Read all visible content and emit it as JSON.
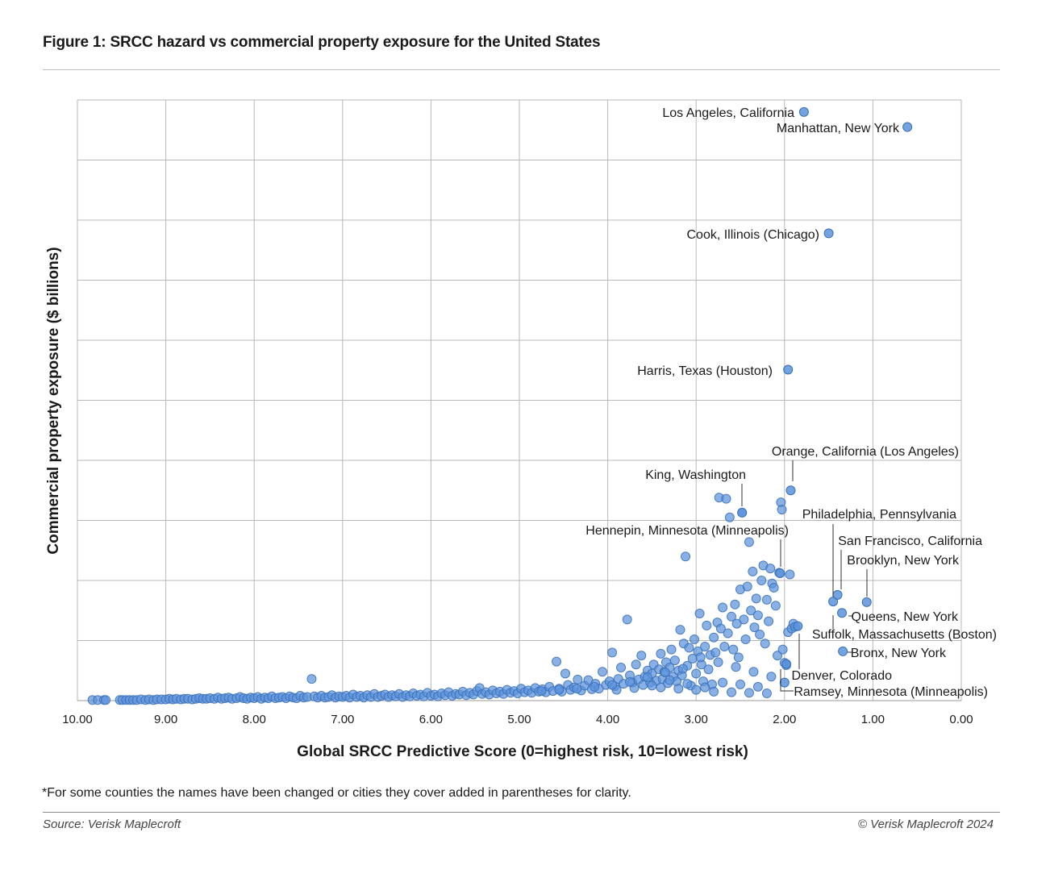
{
  "title": "Figure 1: SRCC hazard vs commercial property exposure for the United States",
  "footnote": "*For some counties the names have been changed or cities they cover added in parentheses for clarity.",
  "source": "Source: Verisk Maplecroft",
  "copyright": "© Verisk Maplecroft 2024",
  "colors": {
    "marker_fill": "#5b93dc",
    "marker_stroke": "#3a6fb5",
    "grid": "#b8b8b8",
    "text": "#1a1a1a"
  },
  "chart_data": {
    "type": "scatter",
    "title": "Figure 1: SRCC hazard vs commercial property exposure for the United States",
    "xlabel": "Global SRCC Predictive Score (0=highest risk, 10=lowest risk)",
    "ylabel": "Commercial property exposure ($ billions)",
    "xlim": [
      10,
      0
    ],
    "x_reversed": true,
    "ylim": [
      0,
      100
    ],
    "y_tick_labels_shown": false,
    "grid": true,
    "x_ticks": [
      "10.00",
      "9.00",
      "8.00",
      "7.00",
      "6.00",
      "5.00",
      "4.00",
      "3.00",
      "2.00",
      "1.00",
      "0.00"
    ],
    "labeled_points": [
      {
        "label": "Los Angeles, California",
        "x": 1.78,
        "y": 98.0
      },
      {
        "label": "Manhattan, New York",
        "x": 0.61,
        "y": 95.5
      },
      {
        "label": "Cook, Illinois (Chicago)",
        "x": 1.5,
        "y": 77.8
      },
      {
        "label": "Harris, Texas (Houston)",
        "x": 1.96,
        "y": 55.1
      },
      {
        "label": "Orange, California (Los Angeles)",
        "x": 1.93,
        "y": 35.0
      },
      {
        "label": "King, Washington",
        "x": 2.48,
        "y": 31.3
      },
      {
        "label": "Hennepin, Minnesota (Minneapolis)",
        "x": 2.05,
        "y": 21.2
      },
      {
        "label": "Philadelphia, Pennsylvania",
        "x": 1.45,
        "y": 16.5
      },
      {
        "label": "San Francisco, California",
        "x": 1.4,
        "y": 17.6
      },
      {
        "label": "Brooklyn, New York",
        "x": 1.07,
        "y": 16.4
      },
      {
        "label": "Queens, New York",
        "x": 1.35,
        "y": 14.6
      },
      {
        "label": "Suffolk, Massachusetts (Boston)",
        "x": 1.85,
        "y": 12.4
      },
      {
        "label": "Bronx, New York",
        "x": 1.34,
        "y": 8.2
      },
      {
        "label": "Denver, Colorado",
        "x": 1.98,
        "y": 6.1
      },
      {
        "label": "Ramsey, Minnesota (Minneapolis)",
        "x": 2.0,
        "y": 3.0
      }
    ],
    "points": [
      [
        9.83,
        0.1
      ],
      [
        9.77,
        0.1
      ],
      [
        9.7,
        0.1
      ],
      [
        9.68,
        0.1
      ],
      [
        9.52,
        0.1
      ],
      [
        9.49,
        0.1
      ],
      [
        9.45,
        0.1
      ],
      [
        9.41,
        0.1
      ],
      [
        9.37,
        0.1
      ],
      [
        9.33,
        0.1
      ],
      [
        9.28,
        0.2
      ],
      [
        9.23,
        0.1
      ],
      [
        9.19,
        0.2
      ],
      [
        9.14,
        0.1
      ],
      [
        9.1,
        0.2
      ],
      [
        9.05,
        0.2
      ],
      [
        9.0,
        0.2
      ],
      [
        8.96,
        0.3
      ],
      [
        8.92,
        0.2
      ],
      [
        8.88,
        0.3
      ],
      [
        8.83,
        0.2
      ],
      [
        8.79,
        0.3
      ],
      [
        8.75,
        0.3
      ],
      [
        8.7,
        0.2
      ],
      [
        8.66,
        0.3
      ],
      [
        8.62,
        0.4
      ],
      [
        8.58,
        0.3
      ],
      [
        8.54,
        0.3
      ],
      [
        8.5,
        0.4
      ],
      [
        8.45,
        0.3
      ],
      [
        8.41,
        0.5
      ],
      [
        8.37,
        0.3
      ],
      [
        8.33,
        0.4
      ],
      [
        8.29,
        0.5
      ],
      [
        8.25,
        0.3
      ],
      [
        8.2,
        0.4
      ],
      [
        8.16,
        0.6
      ],
      [
        8.12,
        0.4
      ],
      [
        8.08,
        0.3
      ],
      [
        8.04,
        0.5
      ],
      [
        8.0,
        0.4
      ],
      [
        7.96,
        0.6
      ],
      [
        7.92,
        0.3
      ],
      [
        7.88,
        0.5
      ],
      [
        7.84,
        0.4
      ],
      [
        7.8,
        0.7
      ],
      [
        7.76,
        0.4
      ],
      [
        7.72,
        0.5
      ],
      [
        7.68,
        0.6
      ],
      [
        7.64,
        0.4
      ],
      [
        7.6,
        0.7
      ],
      [
        7.56,
        0.5
      ],
      [
        7.52,
        0.4
      ],
      [
        7.48,
        0.8
      ],
      [
        7.44,
        0.5
      ],
      [
        7.4,
        0.6
      ],
      [
        7.35,
        3.6
      ],
      [
        7.32,
        0.7
      ],
      [
        7.28,
        0.5
      ],
      [
        7.24,
        0.8
      ],
      [
        7.2,
        0.5
      ],
      [
        7.16,
        0.6
      ],
      [
        7.12,
        0.9
      ],
      [
        7.08,
        0.5
      ],
      [
        7.04,
        0.7
      ],
      [
        7.0,
        0.6
      ],
      [
        6.96,
        0.8
      ],
      [
        6.92,
        0.5
      ],
      [
        6.88,
        1.0
      ],
      [
        6.84,
        0.6
      ],
      [
        6.8,
        0.8
      ],
      [
        6.76,
        0.5
      ],
      [
        6.72,
        0.9
      ],
      [
        6.68,
        0.6
      ],
      [
        6.64,
        1.1
      ],
      [
        6.6,
        0.6
      ],
      [
        6.56,
        0.8
      ],
      [
        6.52,
        1.0
      ],
      [
        6.48,
        0.6
      ],
      [
        6.44,
        0.9
      ],
      [
        6.4,
        0.7
      ],
      [
        6.36,
        1.1
      ],
      [
        6.32,
        0.6
      ],
      [
        6.28,
        0.9
      ],
      [
        6.24,
        0.7
      ],
      [
        6.2,
        1.2
      ],
      [
        6.16,
        0.8
      ],
      [
        6.12,
        1.0
      ],
      [
        6.08,
        0.7
      ],
      [
        6.04,
        1.3
      ],
      [
        6.0,
        0.8
      ],
      [
        5.96,
        1.0
      ],
      [
        5.92,
        0.7
      ],
      [
        5.88,
        1.2
      ],
      [
        5.84,
        0.9
      ],
      [
        5.8,
        1.4
      ],
      [
        5.76,
        0.8
      ],
      [
        5.72,
        1.1
      ],
      [
        5.68,
        1.0
      ],
      [
        5.64,
        1.5
      ],
      [
        5.6,
        0.9
      ],
      [
        5.56,
        1.3
      ],
      [
        5.52,
        1.0
      ],
      [
        5.48,
        1.6
      ],
      [
        5.45,
        2.1
      ],
      [
        5.42,
        1.1
      ],
      [
        5.38,
        1.4
      ],
      [
        5.34,
        1.0
      ],
      [
        5.3,
        1.7
      ],
      [
        5.26,
        1.2
      ],
      [
        5.22,
        1.5
      ],
      [
        5.18,
        1.1
      ],
      [
        5.14,
        1.8
      ],
      [
        5.1,
        1.3
      ],
      [
        5.06,
        1.6
      ],
      [
        5.02,
        1.2
      ],
      [
        4.98,
        2.0
      ],
      [
        4.94,
        1.4
      ],
      [
        4.9,
        1.7
      ],
      [
        4.86,
        1.3
      ],
      [
        4.82,
        2.1
      ],
      [
        4.78,
        1.5
      ],
      [
        4.74,
        1.9
      ],
      [
        4.7,
        1.4
      ],
      [
        4.66,
        2.3
      ],
      [
        4.62,
        1.6
      ],
      [
        4.58,
        6.5
      ],
      [
        4.55,
        2.0
      ],
      [
        4.52,
        1.5
      ],
      [
        4.48,
        4.5
      ],
      [
        4.45,
        2.6
      ],
      [
        4.42,
        1.8
      ],
      [
        4.38,
        2.2
      ],
      [
        4.34,
        3.5
      ],
      [
        4.3,
        1.7
      ],
      [
        4.26,
        2.5
      ],
      [
        4.22,
        3.4
      ],
      [
        4.18,
        1.9
      ],
      [
        4.14,
        2.8
      ],
      [
        4.1,
        2.0
      ],
      [
        4.06,
        4.8
      ],
      [
        4.02,
        2.6
      ],
      [
        3.98,
        3.2
      ],
      [
        3.95,
        8.0
      ],
      [
        3.92,
        2.4
      ],
      [
        3.88,
        3.6
      ],
      [
        3.85,
        5.5
      ],
      [
        3.82,
        2.8
      ],
      [
        3.78,
        13.5
      ],
      [
        3.75,
        4.2
      ],
      [
        3.72,
        3.0
      ],
      [
        3.68,
        6.0
      ],
      [
        3.65,
        3.5
      ],
      [
        3.62,
        7.5
      ],
      [
        3.6,
        2.6
      ],
      [
        3.58,
        4.0
      ],
      [
        3.55,
        5.0
      ],
      [
        3.52,
        3.0
      ],
      [
        3.5,
        4.5
      ],
      [
        3.48,
        6.0
      ],
      [
        3.45,
        3.3
      ],
      [
        3.42,
        5.2
      ],
      [
        3.4,
        7.8
      ],
      [
        3.38,
        3.6
      ],
      [
        3.36,
        4.8
      ],
      [
        3.34,
        6.4
      ],
      [
        3.32,
        2.9
      ],
      [
        3.3,
        5.5
      ],
      [
        3.28,
        8.5
      ],
      [
        3.26,
        4.0
      ],
      [
        3.24,
        6.7
      ],
      [
        3.22,
        3.2
      ],
      [
        3.2,
        5.0
      ],
      [
        3.18,
        11.8
      ],
      [
        3.16,
        4.2
      ],
      [
        3.14,
        9.5
      ],
      [
        3.12,
        24.0
      ],
      [
        3.1,
        5.8
      ],
      [
        3.08,
        8.8
      ],
      [
        3.06,
        2.5
      ],
      [
        3.04,
        7.0
      ],
      [
        3.02,
        10.2
      ],
      [
        3.0,
        4.5
      ],
      [
        2.98,
        8.2
      ],
      [
        2.96,
        14.5
      ],
      [
        2.94,
        6.0
      ],
      [
        2.92,
        3.2
      ],
      [
        2.9,
        9.0
      ],
      [
        2.88,
        12.5
      ],
      [
        2.86,
        5.2
      ],
      [
        2.84,
        7.6
      ],
      [
        2.82,
        2.7
      ],
      [
        2.8,
        10.5
      ],
      [
        2.78,
        8.0
      ],
      [
        2.76,
        13.0
      ],
      [
        2.74,
        33.8
      ],
      [
        2.72,
        12.0
      ],
      [
        2.7,
        15.5
      ],
      [
        2.68,
        9.0
      ],
      [
        2.66,
        33.6
      ],
      [
        2.64,
        11.2
      ],
      [
        2.62,
        30.5
      ],
      [
        2.6,
        14.0
      ],
      [
        2.58,
        8.5
      ],
      [
        2.56,
        16.0
      ],
      [
        2.54,
        12.8
      ],
      [
        2.52,
        7.2
      ],
      [
        2.5,
        18.5
      ],
      [
        2.48,
        31.3
      ],
      [
        2.46,
        13.5
      ],
      [
        2.44,
        10.2
      ],
      [
        2.42,
        19.0
      ],
      [
        2.4,
        26.4
      ],
      [
        2.38,
        15.0
      ],
      [
        2.36,
        21.5
      ],
      [
        2.34,
        12.2
      ],
      [
        2.32,
        17.0
      ],
      [
        2.3,
        14.2
      ],
      [
        2.28,
        11.0
      ],
      [
        2.26,
        20.0
      ],
      [
        2.24,
        22.5
      ],
      [
        2.22,
        9.5
      ],
      [
        2.2,
        16.8
      ],
      [
        2.18,
        13.2
      ],
      [
        2.16,
        22.0
      ],
      [
        2.14,
        19.5
      ],
      [
        2.12,
        18.8
      ],
      [
        2.1,
        15.8
      ],
      [
        2.08,
        7.5
      ],
      [
        2.06,
        21.3
      ],
      [
        2.04,
        33.0
      ],
      [
        2.03,
        31.8
      ],
      [
        2.02,
        8.5
      ],
      [
        2.0,
        6.3
      ],
      [
        1.98,
        5.9
      ],
      [
        1.96,
        11.4
      ],
      [
        1.94,
        21.0
      ],
      [
        1.92,
        12.0
      ],
      [
        1.9,
        12.8
      ],
      [
        1.88,
        12.3
      ],
      [
        2.2,
        1.2
      ],
      [
        2.4,
        1.3
      ],
      [
        2.6,
        1.4
      ],
      [
        2.8,
        1.5
      ],
      [
        3.0,
        1.8
      ],
      [
        3.2,
        2.0
      ],
      [
        3.4,
        2.2
      ],
      [
        2.3,
        2.3
      ],
      [
        2.5,
        2.7
      ],
      [
        2.7,
        3.0
      ],
      [
        2.9,
        2.2
      ],
      [
        3.1,
        2.8
      ],
      [
        3.3,
        3.4
      ],
      [
        3.5,
        2.5
      ],
      [
        3.7,
        2.1
      ],
      [
        3.9,
        1.8
      ],
      [
        2.15,
        4.0
      ],
      [
        2.35,
        4.8
      ],
      [
        2.55,
        5.6
      ],
      [
        2.75,
        6.4
      ],
      [
        2.95,
        7.2
      ],
      [
        3.15,
        5.3
      ],
      [
        3.35,
        4.7
      ],
      [
        3.55,
        3.9
      ],
      [
        3.75,
        3.1
      ],
      [
        3.95,
        2.6
      ],
      [
        4.15,
        2.3
      ],
      [
        4.35,
        2.0
      ],
      [
        4.55,
        1.8
      ],
      [
        4.75,
        1.6
      ]
    ]
  }
}
